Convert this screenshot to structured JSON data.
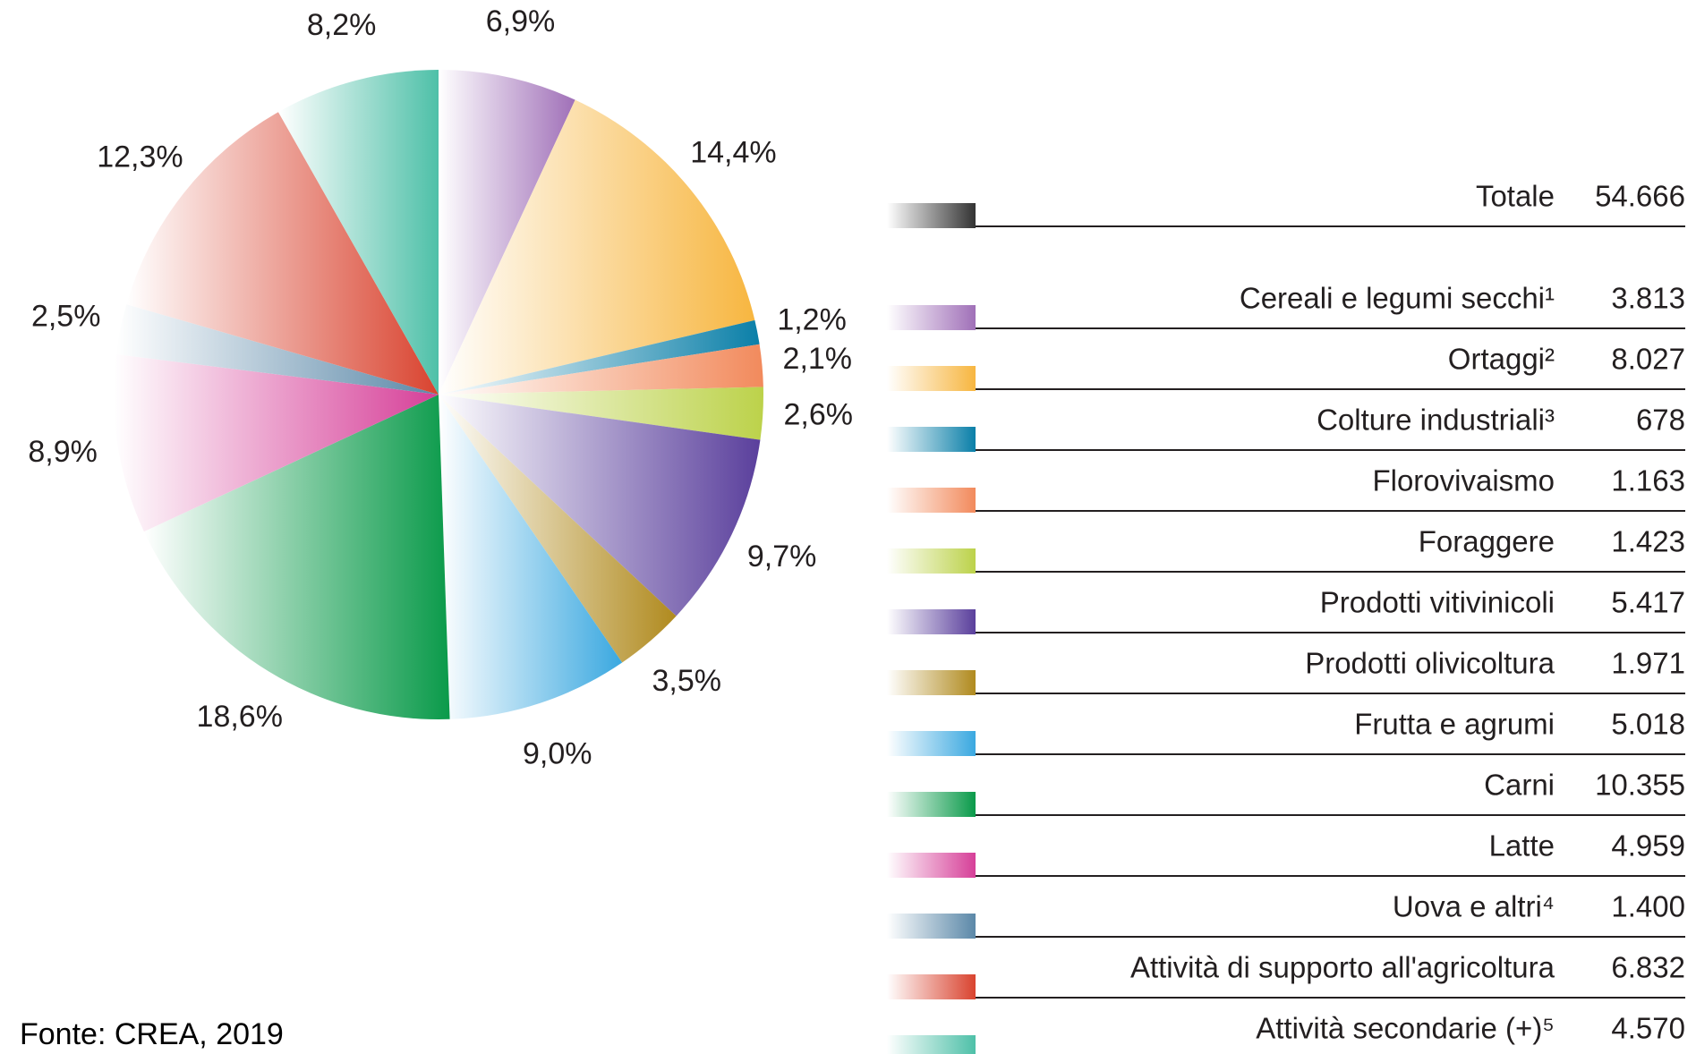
{
  "chart_data": {
    "type": "pie",
    "categories": [
      "Cereali e legumi secchi¹",
      "Ortaggi²",
      "Colture industriali³",
      "Florovivaismo",
      "Foraggere",
      "Prodotti vitivinicoli",
      "Prodotti olivicoltura",
      "Frutta e agrumi",
      "Carni",
      "Latte",
      "Uova e altri⁴",
      "Attività di supporto all'agricoltura",
      "Attività secondarie (+)⁵"
    ],
    "values": [
      6.9,
      14.4,
      1.2,
      2.1,
      2.6,
      9.7,
      3.5,
      9.0,
      18.6,
      8.9,
      2.5,
      12.3,
      8.2
    ],
    "value_labels": [
      "6,9%",
      "14,4%",
      "1,2%",
      "2,1%",
      "2,6%",
      "9,7%",
      "3,5%",
      "9,0%",
      "18,6%",
      "8,9%",
      "2,5%",
      "12,3%",
      "8,2%"
    ],
    "colors": [
      "#a070b8",
      "#f7b640",
      "#0a7fa8",
      "#f28a5c",
      "#bcd24a",
      "#5a3f9c",
      "#b08a1e",
      "#3aa8e0",
      "#0a9a4a",
      "#d63f98",
      "#5b88a8",
      "#d9432f",
      "#4ec0a8"
    ],
    "table": {
      "total_label": "Totale",
      "total_value": "54.666",
      "total_color": "#333333",
      "values": [
        "3.813",
        "8.027",
        "678",
        "1.163",
        "1.423",
        "5.417",
        "1.971",
        "5.018",
        "10.355",
        "4.959",
        "1.400",
        "6.832",
        "4.570"
      ]
    },
    "source": "Fonte: CREA, 2019"
  }
}
